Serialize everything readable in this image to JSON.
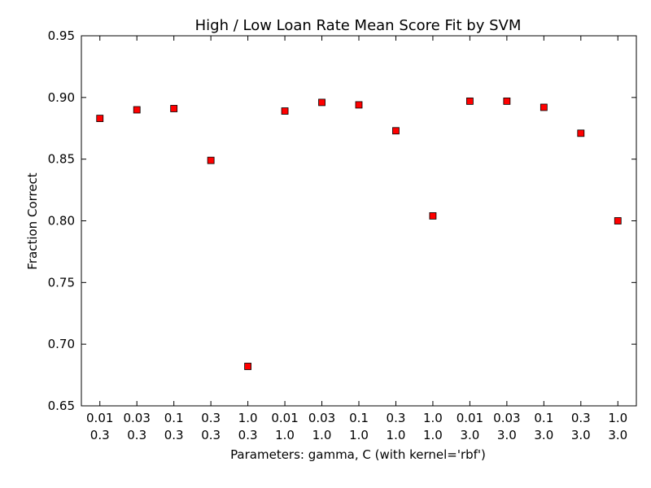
{
  "chart_data": {
    "type": "scatter",
    "title": "High / Low Loan Rate Mean Score Fit by SVM",
    "xlabel": "Parameters: gamma, C (with kernel='rbf')",
    "ylabel": "Fraction Correct",
    "ylim": [
      0.65,
      0.95
    ],
    "yticks": [
      "0.65",
      "0.70",
      "0.75",
      "0.80",
      "0.85",
      "0.90",
      "0.95"
    ],
    "grid": false,
    "marker_color": "#ff0000",
    "points": [
      {
        "gamma": "0.01",
        "C": "0.3",
        "value": 0.883
      },
      {
        "gamma": "0.03",
        "C": "0.3",
        "value": 0.89
      },
      {
        "gamma": "0.1",
        "C": "0.3",
        "value": 0.891
      },
      {
        "gamma": "0.3",
        "C": "0.3",
        "value": 0.849
      },
      {
        "gamma": "1.0",
        "C": "0.3",
        "value": 0.682
      },
      {
        "gamma": "0.01",
        "C": "1.0",
        "value": 0.889
      },
      {
        "gamma": "0.03",
        "C": "1.0",
        "value": 0.896
      },
      {
        "gamma": "0.1",
        "C": "1.0",
        "value": 0.894
      },
      {
        "gamma": "0.3",
        "C": "1.0",
        "value": 0.873
      },
      {
        "gamma": "1.0",
        "C": "1.0",
        "value": 0.804
      },
      {
        "gamma": "0.01",
        "C": "3.0",
        "value": 0.897
      },
      {
        "gamma": "0.03",
        "C": "3.0",
        "value": 0.897
      },
      {
        "gamma": "0.1",
        "C": "3.0",
        "value": 0.892
      },
      {
        "gamma": "0.3",
        "C": "3.0",
        "value": 0.871
      },
      {
        "gamma": "1.0",
        "C": "3.0",
        "value": 0.8
      }
    ]
  }
}
